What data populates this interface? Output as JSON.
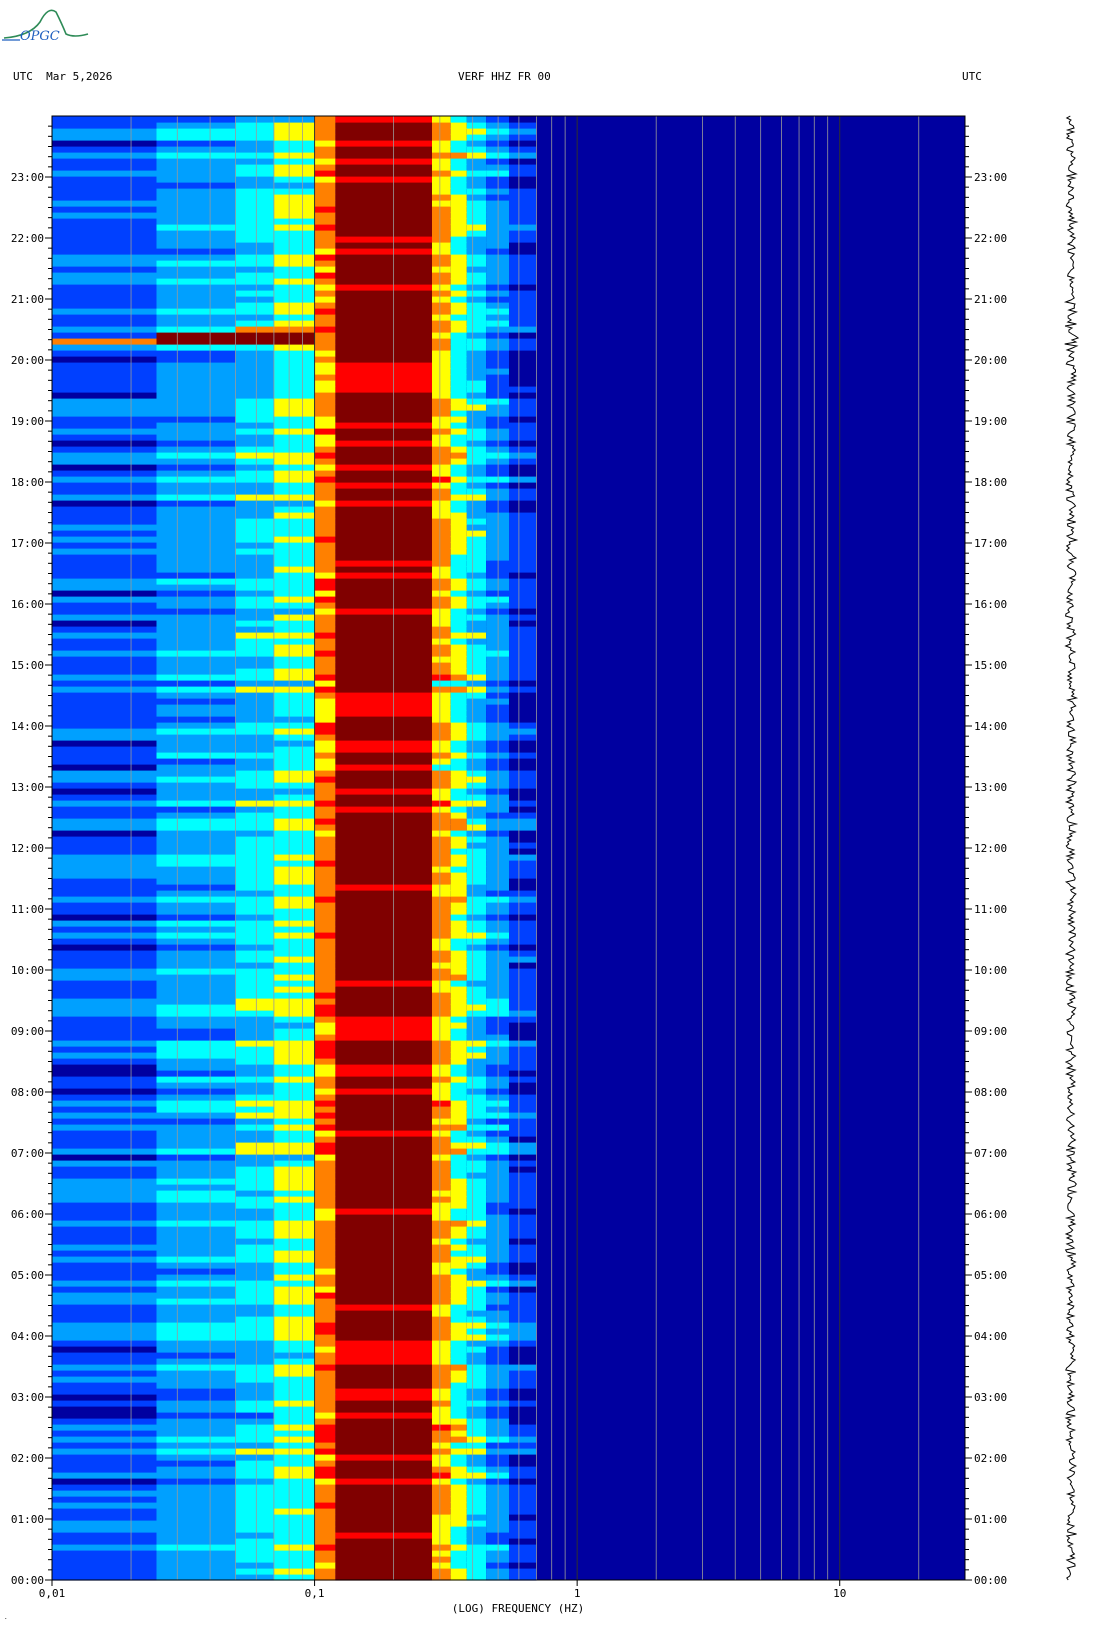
{
  "logo": {
    "text": "OPGC",
    "colors": [
      "#2e8b57",
      "#1f5fbf"
    ]
  },
  "header": {
    "left": "UTC  Mar 5,2026",
    "center": "VERF HHZ FR 00",
    "right": "UTC"
  },
  "chart_data": {
    "type": "heatmap",
    "title": "VERF HHZ FR 00",
    "date": "Mar 5,2026",
    "xlabel": "(LOG) FREQUENCY (HZ)",
    "x_scale": "log",
    "xlim": [
      0.01,
      30
    ],
    "x_ticks": [
      {
        "value": 0.01,
        "label": "0,01"
      },
      {
        "value": 0.1,
        "label": "0,1"
      },
      {
        "value": 1,
        "label": "1"
      },
      {
        "value": 10,
        "label": "10"
      }
    ],
    "y_unit": "UTC hour",
    "ylim": [
      0,
      24
    ],
    "y_ticks": [
      "00:00",
      "01:00",
      "02:00",
      "03:00",
      "04:00",
      "05:00",
      "06:00",
      "07:00",
      "08:00",
      "09:00",
      "10:00",
      "11:00",
      "12:00",
      "13:00",
      "14:00",
      "15:00",
      "16:00",
      "17:00",
      "18:00",
      "19:00",
      "20:00",
      "21:00",
      "22:00",
      "23:00"
    ],
    "colormap": [
      "#0000a0",
      "#0040ff",
      "#00a0ff",
      "#00ffff",
      "#ffff00",
      "#ff8000",
      "#ff0000",
      "#800000"
    ],
    "frequency_bins": [
      {
        "f_min": 0.01,
        "f_max": 0.025,
        "level": 0.18
      },
      {
        "f_min": 0.025,
        "f_max": 0.05,
        "level": 0.3
      },
      {
        "f_min": 0.05,
        "f_max": 0.07,
        "level": 0.38
      },
      {
        "f_min": 0.07,
        "f_max": 0.1,
        "level": 0.48
      },
      {
        "f_min": 0.1,
        "f_max": 0.12,
        "level": 0.72
      },
      {
        "f_min": 0.12,
        "f_max": 0.28,
        "level": 1.0
      },
      {
        "f_min": 0.28,
        "f_max": 0.33,
        "level": 0.66
      },
      {
        "f_min": 0.33,
        "f_max": 0.38,
        "level": 0.52
      },
      {
        "f_min": 0.38,
        "f_max": 0.45,
        "level": 0.4
      },
      {
        "f_min": 0.45,
        "f_max": 0.55,
        "level": 0.26
      },
      {
        "f_min": 0.55,
        "f_max": 0.7,
        "level": 0.12
      },
      {
        "f_min": 0.7,
        "f_max": 30,
        "level": 0.02
      }
    ],
    "events": [
      {
        "hour_start": 20.25,
        "hour_end": 20.45,
        "f_min": 0.025,
        "f_max": 0.1,
        "level": 1.0
      },
      {
        "hour_start": 20.25,
        "hour_end": 20.35,
        "f_min": 0.01,
        "f_max": 0.025,
        "level": 0.75
      },
      {
        "hour_start": 20.5,
        "hour_end": 20.6,
        "f_min": 0.05,
        "f_max": 0.1,
        "level": 0.7
      }
    ],
    "grid": true
  }
}
